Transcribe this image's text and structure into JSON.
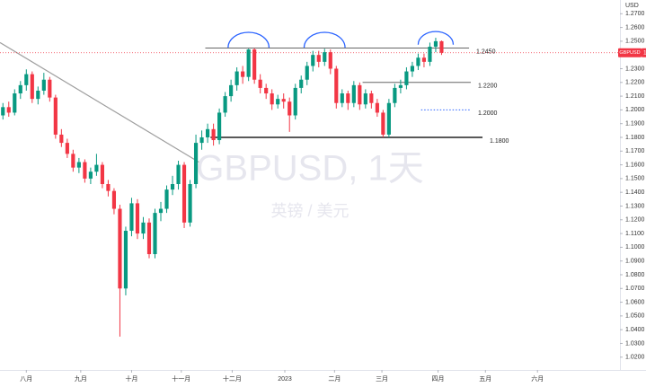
{
  "chart_data": {
    "type": "candlestick",
    "symbol": "GBPUSD",
    "watermark": "GBPUSD, 1天",
    "watermark_subtitle": "英镑 / 美元",
    "y_unit": "USD",
    "last_price": {
      "value": 1.2416,
      "label": "1.2416"
    },
    "up_color": "#089981",
    "down_color": "#f23645",
    "grid": false,
    "xlim": [
      -0.5,
      105.5
    ],
    "ylim": [
      1.012,
      1.28
    ],
    "xticks": [
      {
        "value": 4,
        "label": "八月"
      },
      {
        "value": 13.3,
        "label": "九月"
      },
      {
        "value": 22,
        "label": "十月"
      },
      {
        "value": 30.5,
        "label": "十一月"
      },
      {
        "value": 39.2,
        "label": "十二月"
      },
      {
        "value": 48.2,
        "label": "2023"
      },
      {
        "value": 56.7,
        "label": "二月"
      },
      {
        "value": 64.8,
        "label": "三月"
      },
      {
        "value": 74.4,
        "label": "四月"
      },
      {
        "value": 82.5,
        "label": "五月"
      },
      {
        "value": 91.4,
        "label": "六月"
      }
    ],
    "yticks": [
      {
        "value": 1.02,
        "label": "1.0200"
      },
      {
        "value": 1.03,
        "label": "1.0300"
      },
      {
        "value": 1.04,
        "label": "1.0400"
      },
      {
        "value": 1.05,
        "label": "1.0500"
      },
      {
        "value": 1.06,
        "label": "1.0600"
      },
      {
        "value": 1.07,
        "label": "1.0700"
      },
      {
        "value": 1.08,
        "label": "1.0800"
      },
      {
        "value": 1.09,
        "label": "1.0900"
      },
      {
        "value": 1.1,
        "label": "1.1000"
      },
      {
        "value": 1.11,
        "label": "1.1100"
      },
      {
        "value": 1.12,
        "label": "1.1200"
      },
      {
        "value": 1.13,
        "label": "1.1300"
      },
      {
        "value": 1.14,
        "label": "1.1400"
      },
      {
        "value": 1.15,
        "label": "1.1500"
      },
      {
        "value": 1.16,
        "label": "1.1600"
      },
      {
        "value": 1.17,
        "label": "1.1700"
      },
      {
        "value": 1.18,
        "label": "1.1800"
      },
      {
        "value": 1.19,
        "label": "1.1900"
      },
      {
        "value": 1.2,
        "label": "1.2000"
      },
      {
        "value": 1.21,
        "label": "1.2100"
      },
      {
        "value": 1.22,
        "label": "1.2200"
      },
      {
        "value": 1.23,
        "label": "1.2300"
      },
      {
        "value": 1.24,
        "label": "1.2400"
      },
      {
        "value": 1.25,
        "label": "1.2500"
      },
      {
        "value": 1.26,
        "label": "1.2600"
      },
      {
        "value": 1.27,
        "label": "1.2700"
      }
    ],
    "ohlc": [
      [
        1.196,
        1.205,
        1.193,
        1.202
      ],
      [
        1.202,
        1.206,
        1.195,
        1.198
      ],
      [
        1.198,
        1.215,
        1.196,
        1.212
      ],
      [
        1.212,
        1.221,
        1.208,
        1.218
      ],
      [
        1.218,
        1.2295,
        1.214,
        1.226
      ],
      [
        1.226,
        1.228,
        1.205,
        1.208
      ],
      [
        1.208,
        1.217,
        1.204,
        1.214
      ],
      [
        1.214,
        1.227,
        1.211,
        1.222
      ],
      [
        1.222,
        1.224,
        1.206,
        1.209
      ],
      [
        1.209,
        1.211,
        1.179,
        1.182
      ],
      [
        1.182,
        1.186,
        1.173,
        1.176
      ],
      [
        1.176,
        1.179,
        1.165,
        1.168
      ],
      [
        1.168,
        1.171,
        1.155,
        1.158
      ],
      [
        1.158,
        1.165,
        1.154,
        1.162
      ],
      [
        1.162,
        1.164,
        1.147,
        1.15
      ],
      [
        1.15,
        1.158,
        1.146,
        1.155
      ],
      [
        1.155,
        1.168,
        1.152,
        1.16
      ],
      [
        1.16,
        1.162,
        1.143,
        1.146
      ],
      [
        1.146,
        1.149,
        1.137,
        1.141
      ],
      [
        1.141,
        1.143,
        1.124,
        1.128
      ],
      [
        1.128,
        1.131,
        1.035,
        1.07
      ],
      [
        1.07,
        1.115,
        1.065,
        1.112
      ],
      [
        1.112,
        1.136,
        1.108,
        1.132
      ],
      [
        1.132,
        1.135,
        1.106,
        1.11
      ],
      [
        1.11,
        1.122,
        1.106,
        1.118
      ],
      [
        1.118,
        1.121,
        1.092,
        1.095
      ],
      [
        1.095,
        1.128,
        1.092,
        1.125
      ],
      [
        1.125,
        1.133,
        1.119,
        1.128
      ],
      [
        1.128,
        1.145,
        1.125,
        1.142
      ],
      [
        1.142,
        1.152,
        1.138,
        1.146
      ],
      [
        1.146,
        1.163,
        1.142,
        1.16
      ],
      [
        1.16,
        1.162,
        1.114,
        1.118
      ],
      [
        1.118,
        1.149,
        1.115,
        1.146
      ],
      [
        1.146,
        1.182,
        1.143,
        1.176
      ],
      [
        1.176,
        1.185,
        1.171,
        1.18
      ],
      [
        1.18,
        1.19,
        1.176,
        1.186
      ],
      [
        1.186,
        1.19,
        1.174,
        1.178
      ],
      [
        1.178,
        1.201,
        1.175,
        1.198
      ],
      [
        1.198,
        1.213,
        1.195,
        1.21
      ],
      [
        1.21,
        1.222,
        1.206,
        1.218
      ],
      [
        1.218,
        1.231,
        1.214,
        1.228
      ],
      [
        1.228,
        1.232,
        1.219,
        1.224
      ],
      [
        1.224,
        1.2445,
        1.221,
        1.244
      ],
      [
        1.244,
        1.245,
        1.219,
        1.222
      ],
      [
        1.222,
        1.226,
        1.212,
        1.216
      ],
      [
        1.216,
        1.219,
        1.208,
        1.212
      ],
      [
        1.212,
        1.215,
        1.2,
        1.204
      ],
      [
        1.204,
        1.211,
        1.201,
        1.208
      ],
      [
        1.208,
        1.212,
        1.201,
        1.206
      ],
      [
        1.206,
        1.209,
        1.184,
        1.196
      ],
      [
        1.196,
        1.219,
        1.193,
        1.216
      ],
      [
        1.216,
        1.225,
        1.212,
        1.222
      ],
      [
        1.222,
        1.235,
        1.218,
        1.232
      ],
      [
        1.232,
        1.243,
        1.228,
        1.24
      ],
      [
        1.24,
        1.243,
        1.231,
        1.235
      ],
      [
        1.235,
        1.2445,
        1.232,
        1.242
      ],
      [
        1.242,
        1.244,
        1.226,
        1.23
      ],
      [
        1.23,
        1.232,
        1.201,
        1.205
      ],
      [
        1.205,
        1.215,
        1.202,
        1.212
      ],
      [
        1.212,
        1.214,
        1.2,
        1.205
      ],
      [
        1.205,
        1.221,
        1.202,
        1.218
      ],
      [
        1.218,
        1.22,
        1.2,
        1.204
      ],
      [
        1.204,
        1.215,
        1.201,
        1.212
      ],
      [
        1.212,
        1.214,
        1.201,
        1.205
      ],
      [
        1.205,
        1.208,
        1.195,
        1.198
      ],
      [
        1.198,
        1.2,
        1.18,
        1.182
      ],
      [
        1.182,
        1.208,
        1.18,
        1.205
      ],
      [
        1.205,
        1.219,
        1.202,
        1.216
      ],
      [
        1.216,
        1.222,
        1.212,
        1.218
      ],
      [
        1.218,
        1.231,
        1.215,
        1.228
      ],
      [
        1.228,
        1.235,
        1.224,
        1.232
      ],
      [
        1.232,
        1.241,
        1.229,
        1.238
      ],
      [
        1.238,
        1.241,
        1.231,
        1.235
      ],
      [
        1.235,
        1.249,
        1.232,
        1.246
      ],
      [
        1.246,
        1.2525,
        1.242,
        1.25
      ],
      [
        1.25,
        1.2505,
        1.24,
        1.2416
      ]
    ],
    "levels": [
      {
        "value": 1.245,
        "label": "1.2450",
        "x": [
          34.6,
          79.7
        ],
        "style": "solid"
      },
      {
        "value": 1.22,
        "label": "1.2200",
        "x": [
          61.5,
          80
        ],
        "style": "solid"
      },
      {
        "value": 1.2,
        "label": "1.2000",
        "x": [
          71.5,
          80
        ],
        "style": "dotted"
      },
      {
        "value": 1.18,
        "label": "1.1800",
        "x": [
          35.5,
          82
        ],
        "style": "bold"
      }
    ],
    "trendline": {
      "x": [
        -0.5,
        33.5
      ],
      "y": [
        1.249,
        1.162
      ]
    },
    "arcs": [
      {
        "x": [
          38.5,
          45.5
        ],
        "y": 1.2535
      },
      {
        "x": [
          51.5,
          58.5
        ],
        "y": 1.2535
      },
      {
        "x": [
          71,
          77
        ],
        "y": 1.2545
      }
    ]
  }
}
